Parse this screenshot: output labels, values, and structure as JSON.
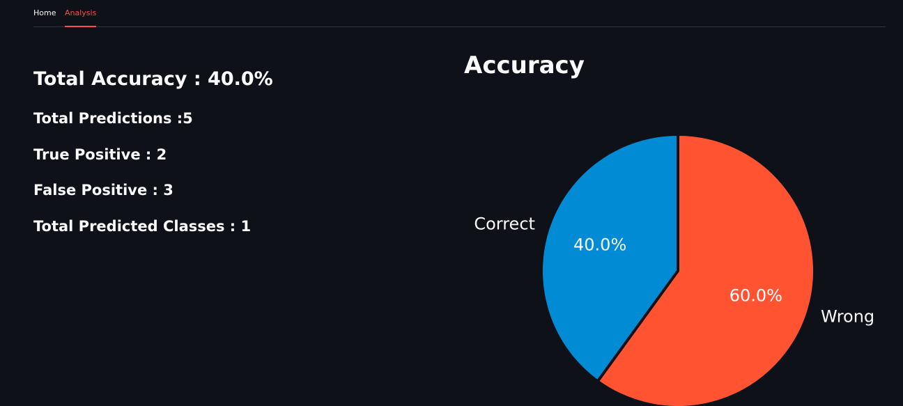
{
  "nav": {
    "tabs": [
      {
        "label": "Home",
        "active": false
      },
      {
        "label": "Analysis",
        "active": true
      }
    ]
  },
  "stats": {
    "total_accuracy": "Total Accuracy : 40.0%",
    "total_predictions": "Total Predictions :5",
    "true_positive": "True Positive : 2",
    "false_positive": "False Positive : 3",
    "total_predicted_classes": "Total Predicted Classes : 1"
  },
  "colors": {
    "background": "#0e1117",
    "accent": "#ff4b4b",
    "correct": "#008bd4",
    "wrong": "#ff5331"
  },
  "chart_data": {
    "type": "pie",
    "title": "Accuracy",
    "slices": [
      {
        "label": "Correct",
        "value": 40.0,
        "pct_label": "40.0%",
        "color": "#008bd4"
      },
      {
        "label": "Wrong",
        "value": 60.0,
        "pct_label": "60.0%",
        "color": "#ff5331"
      }
    ],
    "start": "top",
    "direction": "counterclockwise",
    "legend": "none"
  }
}
